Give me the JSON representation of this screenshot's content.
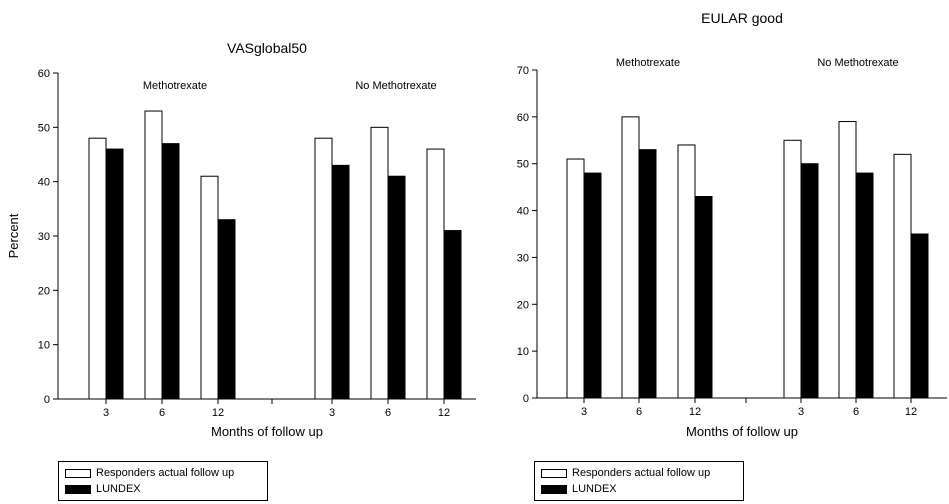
{
  "colors": {
    "actual": "#ffffff",
    "lundex": "#000000",
    "stroke": "#000000"
  },
  "charts": [
    {
      "legend": [
        "Responders actual follow up",
        "LUNDEX"
      ]
    },
    {
      "legend": [
        "Responders actual follow up",
        "LUNDEX"
      ]
    }
  ],
  "chart_data": [
    {
      "type": "bar",
      "title": "VASglobal50",
      "ylabel": "Percent",
      "xlabel": "Months of follow up",
      "ylim": [
        0,
        60
      ],
      "yticks": [
        0,
        10,
        20,
        30,
        40,
        50,
        60
      ],
      "ytick_labels": [
        "0",
        "10",
        "20",
        "30",
        "40",
        "50",
        "60"
      ],
      "groups": [
        "Methotrexate",
        "No Methotrexate"
      ],
      "categories": [
        "3",
        "6",
        "12",
        "3",
        "6",
        "12"
      ],
      "series": [
        {
          "name": "Responders actual follow up",
          "values": [
            48,
            53,
            41,
            48,
            50,
            46
          ]
        },
        {
          "name": "LUNDEX",
          "values": [
            46,
            47,
            33,
            43,
            41,
            31
          ]
        }
      ],
      "grid": false,
      "legend_position": "bottom-left"
    },
    {
      "type": "bar",
      "title": "EULAR good",
      "ylabel": "",
      "xlabel": "Months of follow up",
      "ylim": [
        0,
        70
      ],
      "yticks": [
        0,
        10,
        20,
        30,
        40,
        50,
        60,
        70
      ],
      "ytick_labels": [
        "0",
        "10",
        "20",
        "30",
        "40",
        "50",
        "60",
        "70"
      ],
      "groups": [
        "Methotrexate",
        "No Methotrexate"
      ],
      "categories": [
        "3",
        "6",
        "12",
        "3",
        "6",
        "12"
      ],
      "series": [
        {
          "name": "Responders actual follow up",
          "values": [
            51,
            60,
            54,
            55,
            59,
            52
          ]
        },
        {
          "name": "LUNDEX",
          "values": [
            48,
            53,
            43,
            50,
            48,
            35
          ]
        }
      ],
      "grid": false,
      "legend_position": "bottom-left"
    }
  ]
}
